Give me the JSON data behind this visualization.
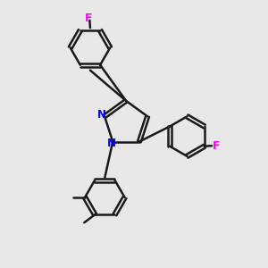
{
  "bg_color": "#e8e8e8",
  "bond_color": "#1a1a1a",
  "N_color": "#0000ff",
  "F_color": "#ff00ff",
  "line_width": 1.8,
  "font_size_atom": 9,
  "canvas_xlim": [
    0,
    10
  ],
  "canvas_ylim": [
    0,
    10
  ]
}
